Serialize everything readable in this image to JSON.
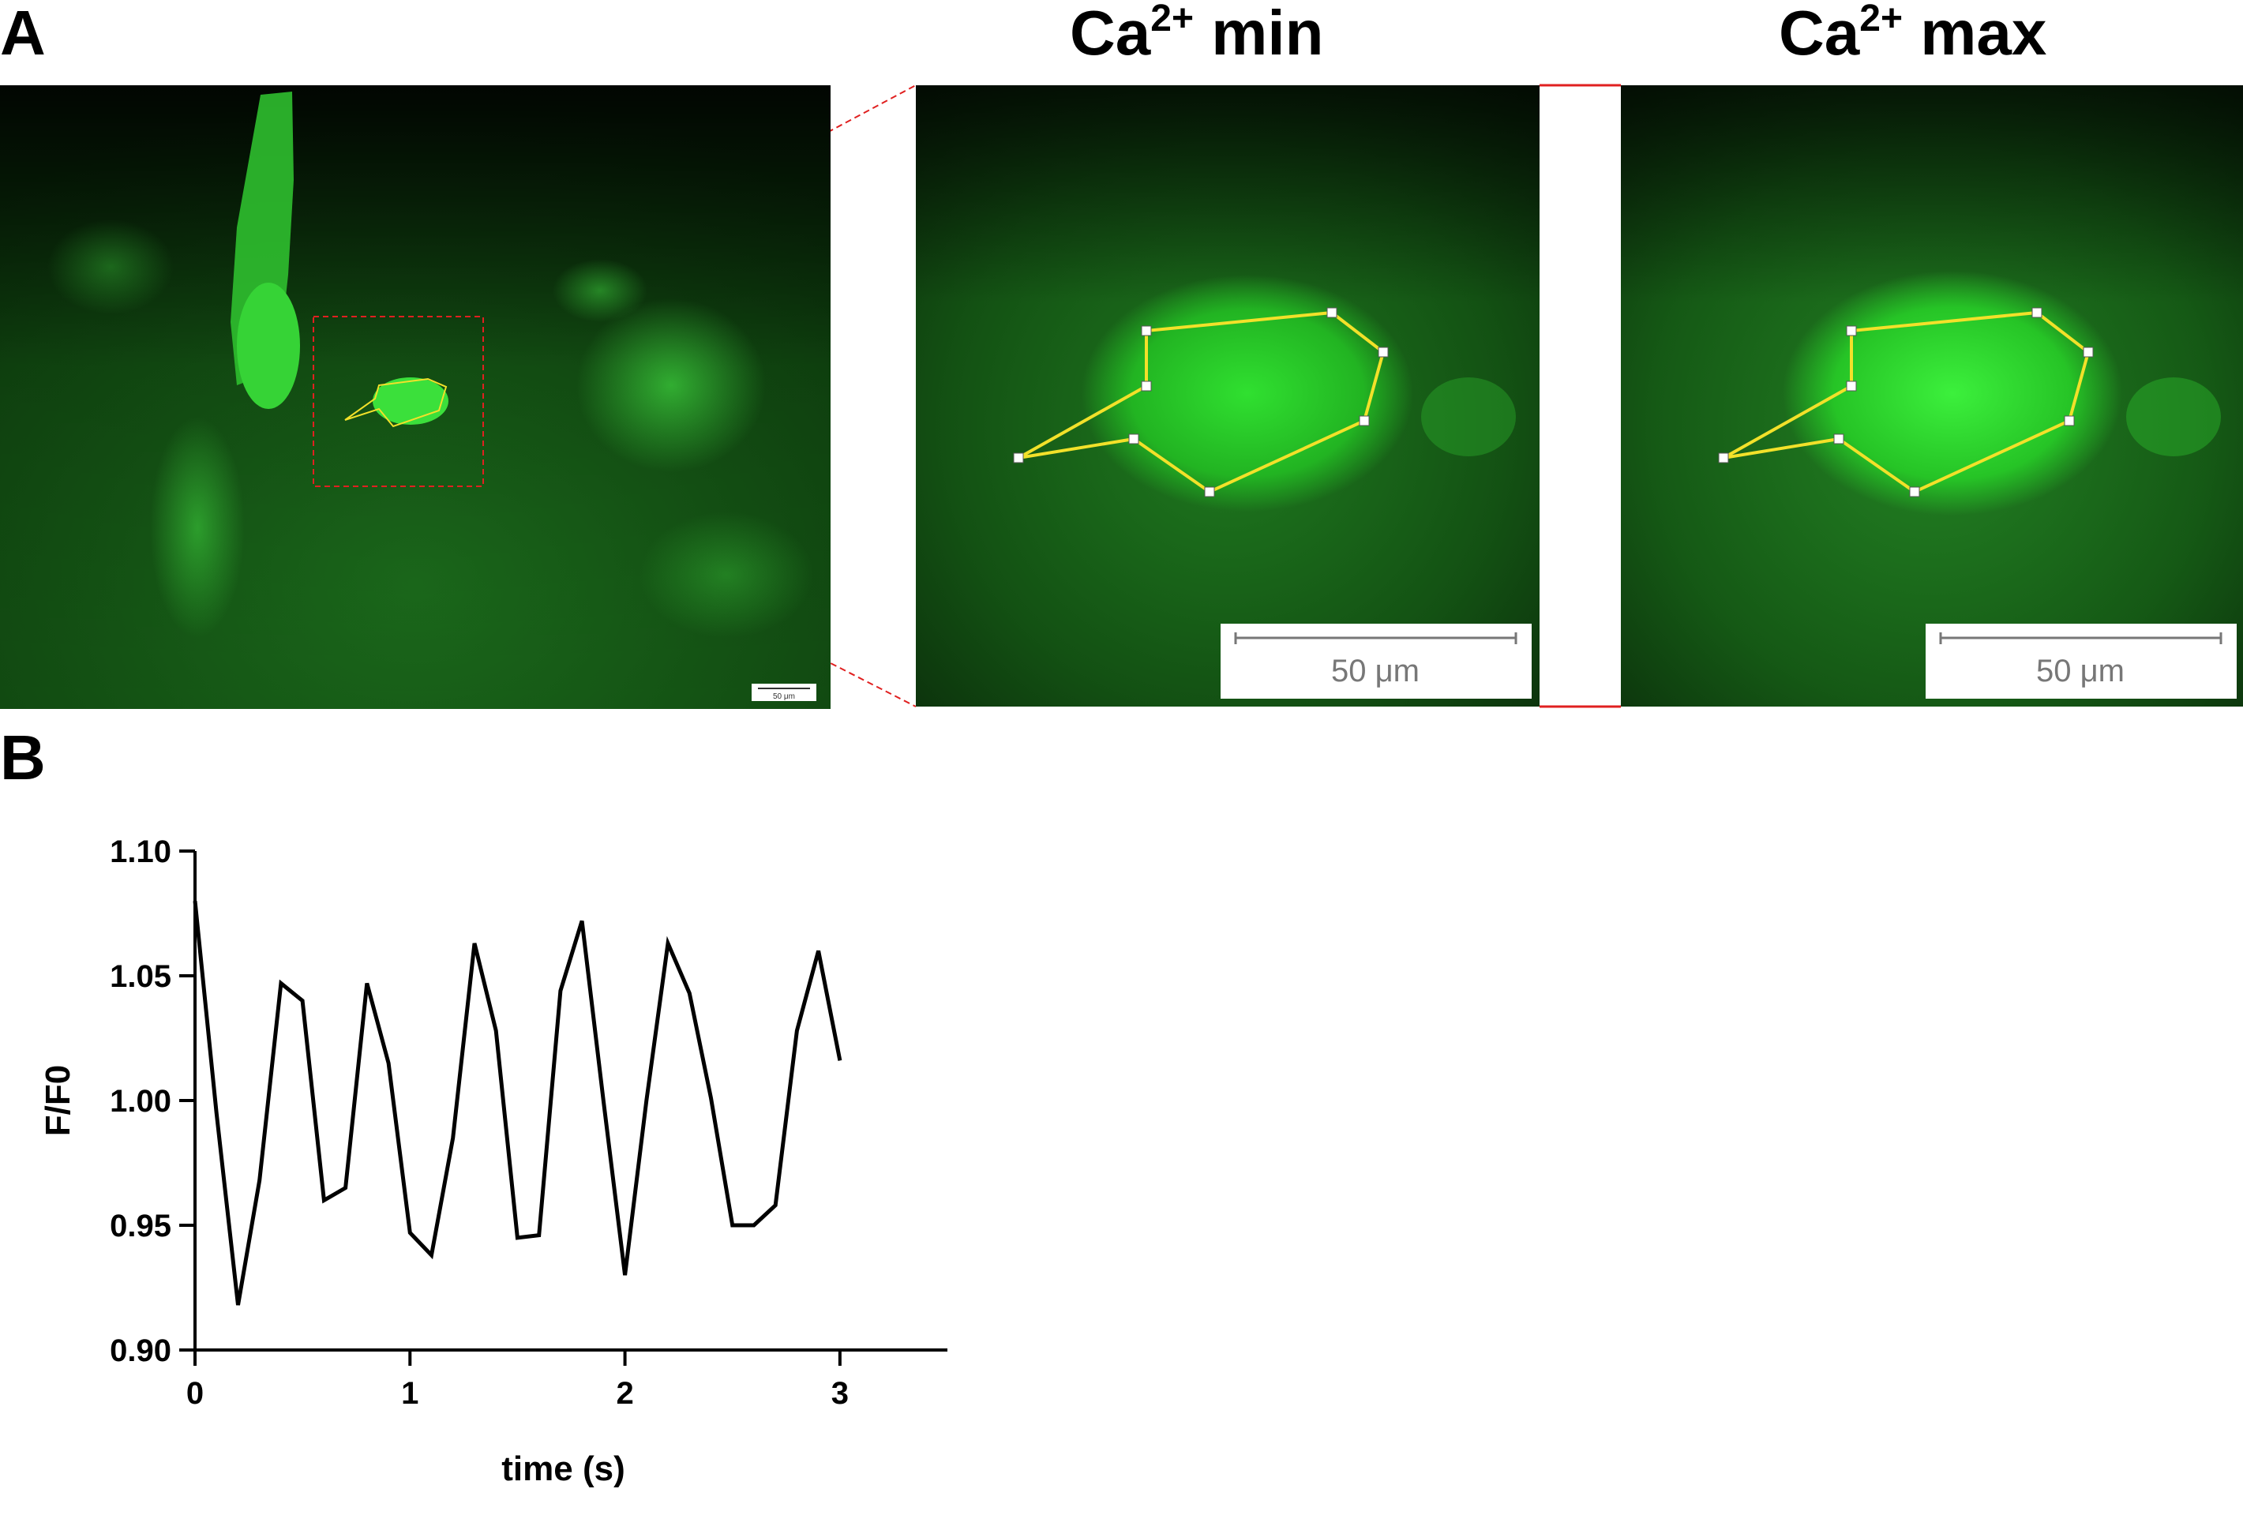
{
  "panel_a": {
    "letter": "A",
    "titles": [
      {
        "base": "Ca",
        "sup": "2+",
        "suffix": " min"
      },
      {
        "base": "Ca",
        "sup": "2+",
        "suffix": " max"
      }
    ],
    "overview_scalebar": "50 μm",
    "zoom_scalebar": "50 μm",
    "colors": {
      "fluorescence": "#1fd21f",
      "roi": "#f2e12a",
      "inset_box": "#e02020"
    }
  },
  "panel_b": {
    "letter": "B"
  },
  "chart_data": {
    "type": "line",
    "xlabel": "time (s)",
    "ylabel": "F/F0",
    "xlim": [
      0,
      3.5
    ],
    "ylim": [
      0.9,
      1.1
    ],
    "xticks": [
      0,
      1,
      2,
      3
    ],
    "yticks": [
      0.9,
      0.95,
      1.0,
      1.05,
      1.1
    ],
    "ytick_labels": [
      "0.90",
      "0.95",
      "1.00",
      "1.05",
      "1.10"
    ],
    "grid": false,
    "line_color": "#000000",
    "x": [
      0,
      0.1,
      0.2,
      0.3,
      0.4,
      0.5,
      0.6,
      0.7,
      0.8,
      0.9,
      1.0,
      1.1,
      1.2,
      1.3,
      1.4,
      1.5,
      1.6,
      1.7,
      1.8,
      1.9,
      2.0,
      2.1,
      2.2,
      2.3,
      2.4,
      2.5,
      2.6,
      2.7,
      2.8,
      2.9,
      3.0
    ],
    "y": [
      1.08,
      0.995,
      0.918,
      0.968,
      1.047,
      1.04,
      0.96,
      0.965,
      1.047,
      1.015,
      0.947,
      0.938,
      0.985,
      1.063,
      1.028,
      0.945,
      0.946,
      1.044,
      1.072,
      1.0,
      0.93,
      1.0,
      1.063,
      1.043,
      1.001,
      0.95,
      0.95,
      0.958,
      1.028,
      1.06,
      1.016
    ]
  }
}
